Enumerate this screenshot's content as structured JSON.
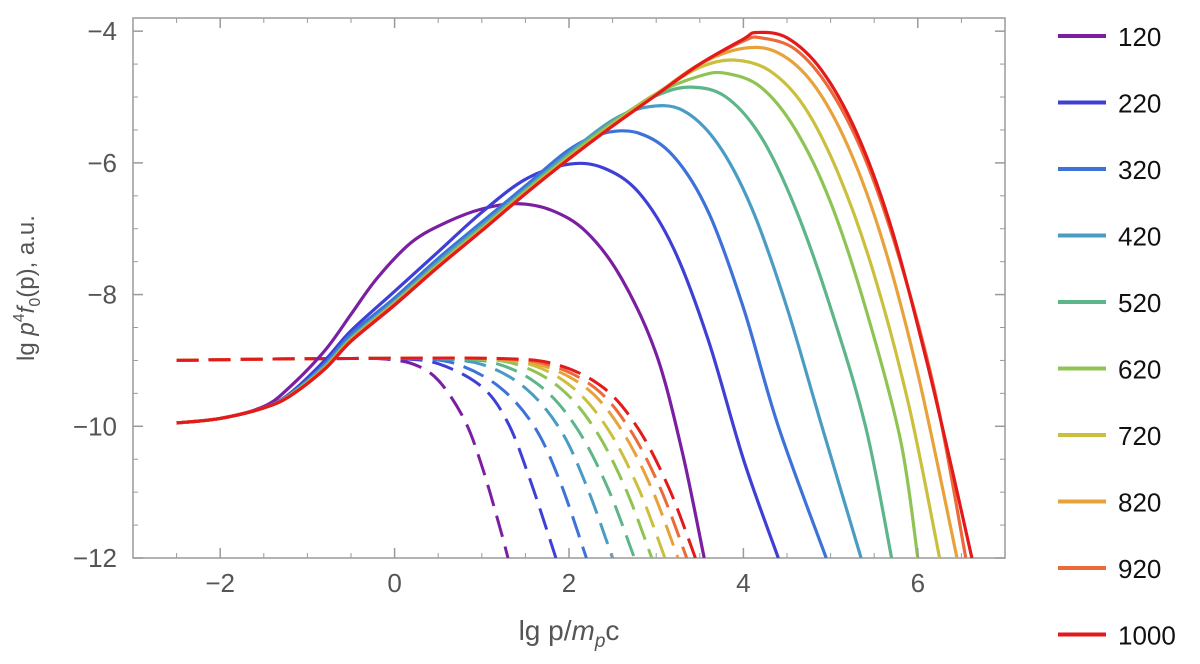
{
  "chart_data": {
    "type": "line",
    "title": "",
    "xlabel": "lg p/m_p c",
    "ylabel": "lg p^4 f_0(p), a.u.",
    "xlim": [
      -3,
      7
    ],
    "ylim": [
      -12,
      -3.8
    ],
    "x_ticks": [
      -2,
      0,
      2,
      4,
      6
    ],
    "y_ticks": [
      -12,
      -10,
      -8,
      -6,
      -4
    ],
    "tick_labels": {
      "x": [
        "−2",
        "0",
        "2",
        "4",
        "6"
      ],
      "y": [
        "−12",
        "−10",
        "−8",
        "−6",
        "−4"
      ]
    },
    "axis_title": {
      "x": {
        "pre": "lg p/",
        "italic": "m",
        "sub": "p",
        "post": "c"
      },
      "y": {
        "pre": "lg ",
        "italic1": "p",
        "sup": "4",
        "italic2": "f",
        "sub": "0",
        "post": "(p), a.u."
      }
    },
    "grid": false,
    "frame": true,
    "legend": {
      "placement": "right",
      "entries": [
        "120",
        "220",
        "320",
        "420",
        "520",
        "620",
        "720",
        "820",
        "920",
        "1000"
      ]
    },
    "line_styles": {
      "solid": "main spectra",
      "dashed": "secondary spectra"
    },
    "series": [
      {
        "name": "120",
        "color": "#7b1fa2",
        "solid": [
          [
            -2.5,
            -9.95
          ],
          [
            -2.0,
            -9.88
          ],
          [
            -1.5,
            -9.7
          ],
          [
            -1.2,
            -9.4
          ],
          [
            -0.8,
            -8.85
          ],
          [
            -0.5,
            -8.3
          ],
          [
            -0.2,
            -7.75
          ],
          [
            0.2,
            -7.2
          ],
          [
            0.6,
            -6.9
          ],
          [
            1.0,
            -6.7
          ],
          [
            1.4,
            -6.62
          ],
          [
            1.8,
            -6.72
          ],
          [
            2.2,
            -7.05
          ],
          [
            2.6,
            -7.75
          ],
          [
            3.0,
            -8.9
          ],
          [
            3.3,
            -10.4
          ],
          [
            3.55,
            -12.0
          ]
        ],
        "dashed": [
          [
            -2.5,
            -9.0
          ],
          [
            -1.5,
            -8.98
          ],
          [
            -0.5,
            -8.97
          ],
          [
            -0.2,
            -8.97
          ],
          [
            0.2,
            -9.05
          ],
          [
            0.5,
            -9.3
          ],
          [
            0.8,
            -9.9
          ],
          [
            1.0,
            -10.6
          ],
          [
            1.2,
            -11.5
          ],
          [
            1.3,
            -12.0
          ]
        ]
      },
      {
        "name": "220",
        "color": "#3f3fd6",
        "solid": [
          [
            -2.5,
            -9.95
          ],
          [
            -2.0,
            -9.88
          ],
          [
            -1.5,
            -9.72
          ],
          [
            -1.2,
            -9.5
          ],
          [
            -0.8,
            -9.0
          ],
          [
            -0.5,
            -8.55
          ],
          [
            0.0,
            -7.95
          ],
          [
            0.5,
            -7.35
          ],
          [
            1.0,
            -6.75
          ],
          [
            1.5,
            -6.25
          ],
          [
            2.0,
            -6.02
          ],
          [
            2.4,
            -6.08
          ],
          [
            2.8,
            -6.45
          ],
          [
            3.2,
            -7.3
          ],
          [
            3.6,
            -8.7
          ],
          [
            4.0,
            -10.5
          ],
          [
            4.4,
            -12.0
          ]
        ],
        "dashed": [
          [
            -2.5,
            -9.0
          ],
          [
            -1.5,
            -8.98
          ],
          [
            -0.5,
            -8.97
          ],
          [
            0.0,
            -8.97
          ],
          [
            0.5,
            -9.05
          ],
          [
            1.0,
            -9.4
          ],
          [
            1.3,
            -9.95
          ],
          [
            1.55,
            -10.8
          ],
          [
            1.85,
            -12.0
          ]
        ]
      },
      {
        "name": "320",
        "color": "#3d73d9",
        "solid": [
          [
            -2.5,
            -9.95
          ],
          [
            -2.0,
            -9.88
          ],
          [
            -1.5,
            -9.72
          ],
          [
            -1.2,
            -9.52
          ],
          [
            -0.8,
            -9.05
          ],
          [
            -0.5,
            -8.6
          ],
          [
            0.0,
            -8.05
          ],
          [
            0.5,
            -7.45
          ],
          [
            1.0,
            -6.9
          ],
          [
            1.5,
            -6.35
          ],
          [
            2.0,
            -5.8
          ],
          [
            2.4,
            -5.55
          ],
          [
            2.8,
            -5.55
          ],
          [
            3.2,
            -5.9
          ],
          [
            3.6,
            -6.75
          ],
          [
            4.0,
            -8.2
          ],
          [
            4.4,
            -10.0
          ],
          [
            4.95,
            -12.0
          ]
        ],
        "dashed": [
          [
            -2.5,
            -9.0
          ],
          [
            -1.5,
            -8.98
          ],
          [
            -0.5,
            -8.97
          ],
          [
            0.2,
            -8.97
          ],
          [
            0.7,
            -9.05
          ],
          [
            1.2,
            -9.4
          ],
          [
            1.6,
            -10.0
          ],
          [
            1.9,
            -10.85
          ],
          [
            2.2,
            -12.0
          ]
        ]
      },
      {
        "name": "420",
        "color": "#4a9cc4",
        "solid": [
          [
            -2.5,
            -9.95
          ],
          [
            -2.0,
            -9.88
          ],
          [
            -1.5,
            -9.72
          ],
          [
            -1.2,
            -9.52
          ],
          [
            -0.8,
            -9.08
          ],
          [
            -0.5,
            -8.65
          ],
          [
            0.0,
            -8.1
          ],
          [
            0.5,
            -7.5
          ],
          [
            1.0,
            -6.95
          ],
          [
            1.5,
            -6.4
          ],
          [
            2.0,
            -5.85
          ],
          [
            2.5,
            -5.35
          ],
          [
            2.9,
            -5.15
          ],
          [
            3.3,
            -5.2
          ],
          [
            3.7,
            -5.7
          ],
          [
            4.1,
            -6.7
          ],
          [
            4.5,
            -8.2
          ],
          [
            4.9,
            -10.0
          ],
          [
            5.35,
            -12.0
          ]
        ],
        "dashed": [
          [
            -2.5,
            -9.0
          ],
          [
            -1.5,
            -8.98
          ],
          [
            -0.5,
            -8.97
          ],
          [
            0.4,
            -8.97
          ],
          [
            1.0,
            -9.06
          ],
          [
            1.5,
            -9.42
          ],
          [
            1.9,
            -10.05
          ],
          [
            2.2,
            -10.9
          ],
          [
            2.5,
            -12.0
          ]
        ]
      },
      {
        "name": "520",
        "color": "#5db58a",
        "solid": [
          [
            -2.5,
            -9.95
          ],
          [
            -2.0,
            -9.88
          ],
          [
            -1.5,
            -9.72
          ],
          [
            -1.2,
            -9.53
          ],
          [
            -0.8,
            -9.1
          ],
          [
            -0.5,
            -8.67
          ],
          [
            0.0,
            -8.12
          ],
          [
            0.5,
            -7.53
          ],
          [
            1.0,
            -6.98
          ],
          [
            1.5,
            -6.42
          ],
          [
            2.0,
            -5.88
          ],
          [
            2.5,
            -5.38
          ],
          [
            3.0,
            -4.98
          ],
          [
            3.4,
            -4.85
          ],
          [
            3.8,
            -5.0
          ],
          [
            4.2,
            -5.6
          ],
          [
            4.6,
            -6.7
          ],
          [
            5.0,
            -8.2
          ],
          [
            5.4,
            -10.0
          ],
          [
            5.7,
            -12.0
          ]
        ],
        "dashed": [
          [
            -2.5,
            -9.0
          ],
          [
            -1.5,
            -8.98
          ],
          [
            -0.5,
            -8.97
          ],
          [
            0.6,
            -8.97
          ],
          [
            1.2,
            -9.06
          ],
          [
            1.7,
            -9.42
          ],
          [
            2.1,
            -10.05
          ],
          [
            2.45,
            -10.95
          ],
          [
            2.75,
            -12.0
          ]
        ]
      },
      {
        "name": "620",
        "color": "#8fc454",
        "solid": [
          [
            -2.5,
            -9.95
          ],
          [
            -2.0,
            -9.88
          ],
          [
            -1.5,
            -9.72
          ],
          [
            -1.2,
            -9.53
          ],
          [
            -0.8,
            -9.11
          ],
          [
            -0.5,
            -8.68
          ],
          [
            0.0,
            -8.13
          ],
          [
            0.5,
            -7.55
          ],
          [
            1.0,
            -7.0
          ],
          [
            1.5,
            -6.44
          ],
          [
            2.0,
            -5.9
          ],
          [
            2.5,
            -5.4
          ],
          [
            3.0,
            -4.95
          ],
          [
            3.5,
            -4.68
          ],
          [
            3.8,
            -4.64
          ],
          [
            4.2,
            -4.85
          ],
          [
            4.6,
            -5.5
          ],
          [
            5.0,
            -6.6
          ],
          [
            5.4,
            -8.2
          ],
          [
            5.8,
            -10.2
          ],
          [
            6.0,
            -12.0
          ]
        ],
        "dashed": [
          [
            -2.5,
            -9.0
          ],
          [
            -1.5,
            -8.98
          ],
          [
            -0.5,
            -8.97
          ],
          [
            0.8,
            -8.97
          ],
          [
            1.4,
            -9.06
          ],
          [
            1.9,
            -9.42
          ],
          [
            2.3,
            -10.05
          ],
          [
            2.65,
            -10.95
          ],
          [
            2.95,
            -12.0
          ]
        ]
      },
      {
        "name": "720",
        "color": "#cbbf3e",
        "solid": [
          [
            -2.5,
            -9.95
          ],
          [
            -2.0,
            -9.88
          ],
          [
            -1.5,
            -9.72
          ],
          [
            -1.2,
            -9.54
          ],
          [
            -0.8,
            -9.12
          ],
          [
            -0.5,
            -8.69
          ],
          [
            0.0,
            -8.14
          ],
          [
            0.5,
            -7.56
          ],
          [
            1.0,
            -7.01
          ],
          [
            1.5,
            -6.45
          ],
          [
            2.0,
            -5.92
          ],
          [
            2.5,
            -5.42
          ],
          [
            3.0,
            -4.95
          ],
          [
            3.5,
            -4.55
          ],
          [
            3.9,
            -4.44
          ],
          [
            4.3,
            -4.6
          ],
          [
            4.7,
            -5.15
          ],
          [
            5.1,
            -6.2
          ],
          [
            5.5,
            -7.7
          ],
          [
            5.9,
            -9.7
          ],
          [
            6.25,
            -12.0
          ]
        ],
        "dashed": [
          [
            -2.5,
            -9.0
          ],
          [
            -1.5,
            -8.98
          ],
          [
            -0.5,
            -8.97
          ],
          [
            0.9,
            -8.97
          ],
          [
            1.55,
            -9.06
          ],
          [
            2.05,
            -9.42
          ],
          [
            2.45,
            -10.05
          ],
          [
            2.8,
            -10.95
          ],
          [
            3.1,
            -12.0
          ]
        ]
      },
      {
        "name": "820",
        "color": "#e8a23a",
        "solid": [
          [
            -2.5,
            -9.95
          ],
          [
            -2.0,
            -9.88
          ],
          [
            -1.5,
            -9.72
          ],
          [
            -1.2,
            -9.54
          ],
          [
            -0.8,
            -9.12
          ],
          [
            -0.5,
            -8.7
          ],
          [
            0.0,
            -8.15
          ],
          [
            0.5,
            -7.57
          ],
          [
            1.0,
            -7.02
          ],
          [
            1.5,
            -6.46
          ],
          [
            2.0,
            -5.93
          ],
          [
            2.5,
            -5.43
          ],
          [
            3.0,
            -4.96
          ],
          [
            3.5,
            -4.5
          ],
          [
            4.0,
            -4.26
          ],
          [
            4.4,
            -4.33
          ],
          [
            4.8,
            -4.8
          ],
          [
            5.2,
            -5.75
          ],
          [
            5.6,
            -7.2
          ],
          [
            6.0,
            -9.2
          ],
          [
            6.45,
            -12.0
          ]
        ],
        "dashed": [
          [
            -2.5,
            -9.0
          ],
          [
            -1.5,
            -8.98
          ],
          [
            -0.5,
            -8.97
          ],
          [
            1.0,
            -8.97
          ],
          [
            1.65,
            -9.06
          ],
          [
            2.2,
            -9.42
          ],
          [
            2.6,
            -10.05
          ],
          [
            2.95,
            -10.95
          ],
          [
            3.25,
            -12.0
          ]
        ]
      },
      {
        "name": "920",
        "color": "#ec6a3a",
        "solid": [
          [
            -2.5,
            -9.95
          ],
          [
            -2.0,
            -9.88
          ],
          [
            -1.5,
            -9.72
          ],
          [
            -1.2,
            -9.54
          ],
          [
            -0.8,
            -9.13
          ],
          [
            -0.5,
            -8.7
          ],
          [
            0.0,
            -8.15
          ],
          [
            0.5,
            -7.58
          ],
          [
            1.0,
            -7.03
          ],
          [
            1.5,
            -6.47
          ],
          [
            2.0,
            -5.94
          ],
          [
            2.5,
            -5.44
          ],
          [
            3.0,
            -4.97
          ],
          [
            3.5,
            -4.5
          ],
          [
            4.0,
            -4.15
          ],
          [
            4.2,
            -4.1
          ],
          [
            4.6,
            -4.28
          ],
          [
            5.0,
            -4.9
          ],
          [
            5.4,
            -5.95
          ],
          [
            5.8,
            -7.5
          ],
          [
            6.2,
            -9.5
          ],
          [
            6.55,
            -12.0
          ]
        ],
        "dashed": [
          [
            -2.5,
            -9.0
          ],
          [
            -1.5,
            -8.98
          ],
          [
            -0.5,
            -8.97
          ],
          [
            1.1,
            -8.97
          ],
          [
            1.75,
            -9.06
          ],
          [
            2.3,
            -9.42
          ],
          [
            2.7,
            -10.05
          ],
          [
            3.05,
            -10.95
          ],
          [
            3.35,
            -12.0
          ]
        ]
      },
      {
        "name": "1000",
        "color": "#e31a1c",
        "solid": [
          [
            -2.5,
            -9.95
          ],
          [
            -2.0,
            -9.88
          ],
          [
            -1.5,
            -9.72
          ],
          [
            -1.2,
            -9.54
          ],
          [
            -0.8,
            -9.13
          ],
          [
            -0.5,
            -8.71
          ],
          [
            0.0,
            -8.16
          ],
          [
            0.5,
            -7.58
          ],
          [
            1.0,
            -7.03
          ],
          [
            1.5,
            -6.47
          ],
          [
            2.0,
            -5.94
          ],
          [
            2.5,
            -5.44
          ],
          [
            3.0,
            -4.97
          ],
          [
            3.5,
            -4.5
          ],
          [
            4.0,
            -4.12
          ],
          [
            4.15,
            -4.02
          ],
          [
            4.5,
            -4.1
          ],
          [
            4.9,
            -4.6
          ],
          [
            5.3,
            -5.55
          ],
          [
            5.7,
            -7.0
          ],
          [
            6.1,
            -9.0
          ],
          [
            6.4,
            -10.7
          ],
          [
            6.62,
            -12.0
          ]
        ],
        "dashed": [
          [
            -2.5,
            -9.0
          ],
          [
            -1.5,
            -8.98
          ],
          [
            -0.5,
            -8.97
          ],
          [
            1.2,
            -8.97
          ],
          [
            1.85,
            -9.06
          ],
          [
            2.4,
            -9.42
          ],
          [
            2.8,
            -10.05
          ],
          [
            3.15,
            -10.95
          ],
          [
            3.45,
            -12.0
          ]
        ]
      }
    ]
  }
}
